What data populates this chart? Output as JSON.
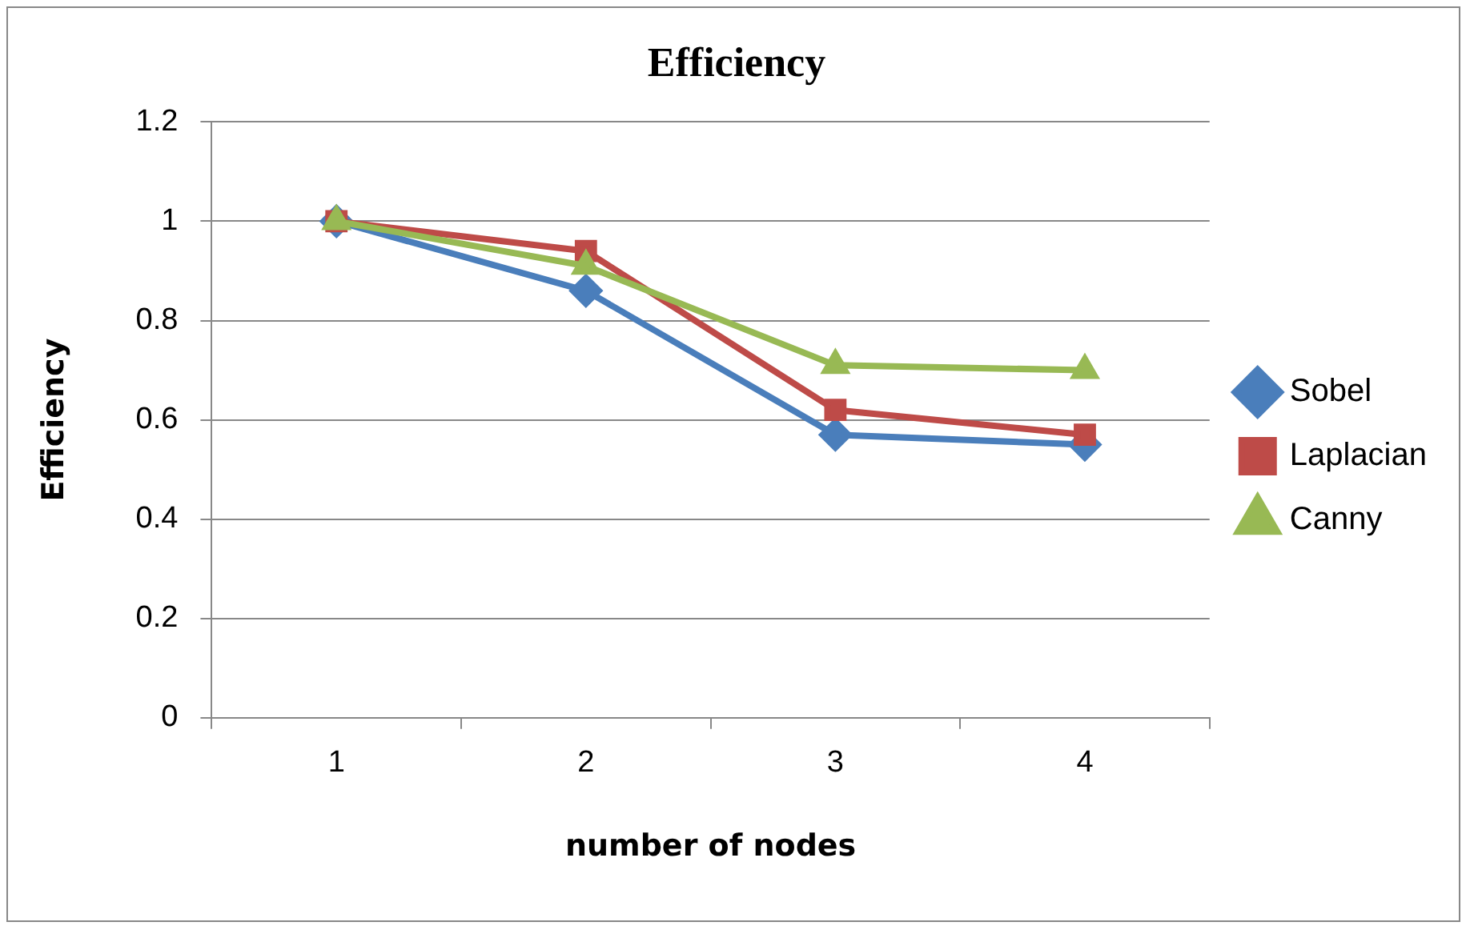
{
  "chart_data": {
    "type": "line",
    "title": "Efficiency",
    "xlabel": "number of nodes",
    "ylabel": "Efficiency",
    "categories": [
      "1",
      "2",
      "3",
      "4"
    ],
    "series": [
      {
        "name": "Sobel",
        "color": "#4a7ebb",
        "marker": "diamond",
        "values": [
          1,
          0.86,
          0.57,
          0.55
        ]
      },
      {
        "name": "Laplacian",
        "color": "#be4b48",
        "marker": "square",
        "values": [
          1,
          0.94,
          0.62,
          0.57
        ]
      },
      {
        "name": "Canny",
        "color": "#98b954",
        "marker": "triangle",
        "values": [
          1,
          0.91,
          0.71,
          0.7
        ]
      }
    ],
    "ylim": [
      0,
      1.2
    ],
    "yticks": [
      0,
      0.2,
      0.4,
      0.6,
      0.8,
      1,
      1.2
    ],
    "grid": "y",
    "legend": "right",
    "line_style": "solid"
  }
}
